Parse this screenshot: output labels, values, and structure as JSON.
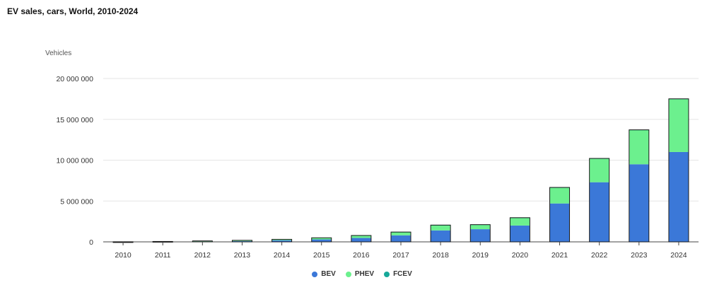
{
  "title": "EV sales, cars, World, 2010-2024",
  "colors": {
    "BEV": "#3b78d8",
    "PHEV": "#6cf08e",
    "FCEV": "#17a899"
  },
  "chart_data": {
    "type": "bar",
    "stacked": true,
    "ylabel": "Vehicles",
    "ylim": [
      0,
      20000000
    ],
    "yticks": [
      0,
      5000000,
      10000000,
      15000000,
      20000000
    ],
    "ytick_labels": [
      "0",
      "5 000 000",
      "10 000 000",
      "15 000 000",
      "20 000 000"
    ],
    "categories": [
      "2010",
      "2011",
      "2012",
      "2013",
      "2014",
      "2015",
      "2016",
      "2017",
      "2018",
      "2019",
      "2020",
      "2021",
      "2022",
      "2023",
      "2024"
    ],
    "series": [
      {
        "name": "BEV",
        "values": [
          10000,
          40000,
          60000,
          100000,
          200000,
          300000,
          480000,
          800000,
          1400000,
          1550000,
          2000000,
          4700000,
          7300000,
          9500000,
          11000000
        ]
      },
      {
        "name": "PHEV",
        "values": [
          1000,
          10000,
          60000,
          90000,
          110000,
          200000,
          300000,
          400000,
          650000,
          550000,
          950000,
          1950000,
          2900000,
          4200000,
          6500000
        ]
      },
      {
        "name": "FCEV",
        "values": [
          0,
          0,
          0,
          0,
          0,
          0,
          2000,
          3000,
          5000,
          10000,
          10000,
          15000,
          15000,
          15000,
          12000
        ]
      }
    ],
    "grid": true,
    "legend": "bottom-center"
  }
}
